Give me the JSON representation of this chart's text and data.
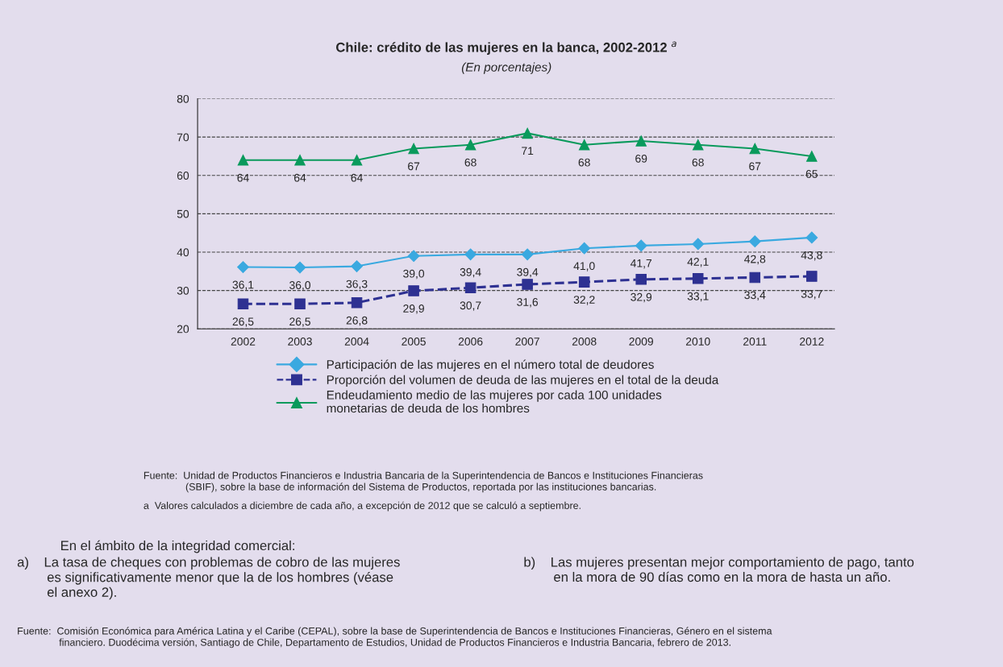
{
  "chart_data": {
    "type": "line",
    "title": "Chile: crédito de las mujeres en la banca, 2002-2012 $^{a}$",
    "subtitle": "(En porcentajes)",
    "categories": [
      "2002",
      "2003",
      "2004",
      "2005",
      "2006",
      "2007",
      "2008",
      "2009",
      "2010",
      "2011",
      "2012"
    ],
    "series": [
      {
        "name": "Participación de las mujeres en el número total de deudores",
        "color": "#3aa9e0",
        "marker": "diamond",
        "line_style": "solid",
        "values": [
          36.1,
          36.0,
          36.3,
          39.0,
          39.4,
          39.4,
          41.0,
          41.7,
          42.1,
          42.8,
          43.8
        ],
        "value_labels": [
          "36,1",
          "36,0",
          "36,3",
          "39,0",
          "39,4",
          "39,4",
          "41,0",
          "41,7",
          "42,1",
          "42,8",
          "43,8"
        ]
      },
      {
        "name": "Proporción del volumen de deuda de las mujeres en el total de la deuda",
        "color": "#2e3192",
        "marker": "square",
        "line_style": "dashed",
        "values": [
          26.5,
          26.5,
          26.8,
          29.9,
          30.7,
          31.6,
          32.2,
          32.9,
          33.1,
          33.4,
          33.7
        ],
        "value_labels": [
          "26,5",
          "26,5",
          "26,8",
          "29,9",
          "30,7",
          "31,6",
          "32,2",
          "32,9",
          "33,1",
          "33,4",
          "33,7"
        ]
      },
      {
        "name": "Endeudamiento medio de las mujeres por cada 100 unidades\nmonetarias de deuda de los hombres",
        "color": "#0a9a5c",
        "marker": "triangle",
        "line_style": "solid",
        "values": [
          64,
          64,
          64,
          67,
          68,
          71,
          68,
          69,
          68,
          67,
          65
        ],
        "value_labels": [
          "64",
          "64",
          "64",
          "67",
          "68",
          "71",
          "68",
          "69",
          "68",
          "67",
          "65"
        ]
      }
    ],
    "ylim": [
      20,
      80
    ],
    "yticks": [
      20,
      30,
      40,
      50,
      60,
      70,
      80
    ],
    "grid": "y",
    "legend": "bottom",
    "annotations": [
      "Fuente:  Unidad de Productos Financieros e Industria Bancaria de la Superintendencia de Bancos e Instituciones Financieras\n               (SBIF), sobre la base de información del Sistema de Productos, reportada por las instituciones bancarias.",
      "a  Valores calculados a diciembre de cada año, a excepción de 2012 que se calculó a septiembre.",
      "En el ámbito de la integridad comercial:",
      "a)    La tasa de cheques con problemas de cobro de las mujeres\n        es significativamente menor que la de los hombres (véase\n        el anexo 2).",
      "b)    Las mujeres presentan mejor comportamiento de pago, tanto\n        en la mora de 90 días como en la mora de hasta un año.",
      "Fuente:  Comisión Económica para América Latina y el Caribe (CEPAL), sobre la base de Superintendencia de Bancos e Instituciones Financieras, Género en el sistema\n               financiero. Duodécima versión, Santiago de Chile, Departamento de Estudios, Unidad de Productos Financieros e Industria Bancaria, febrero de 2013."
    ]
  }
}
